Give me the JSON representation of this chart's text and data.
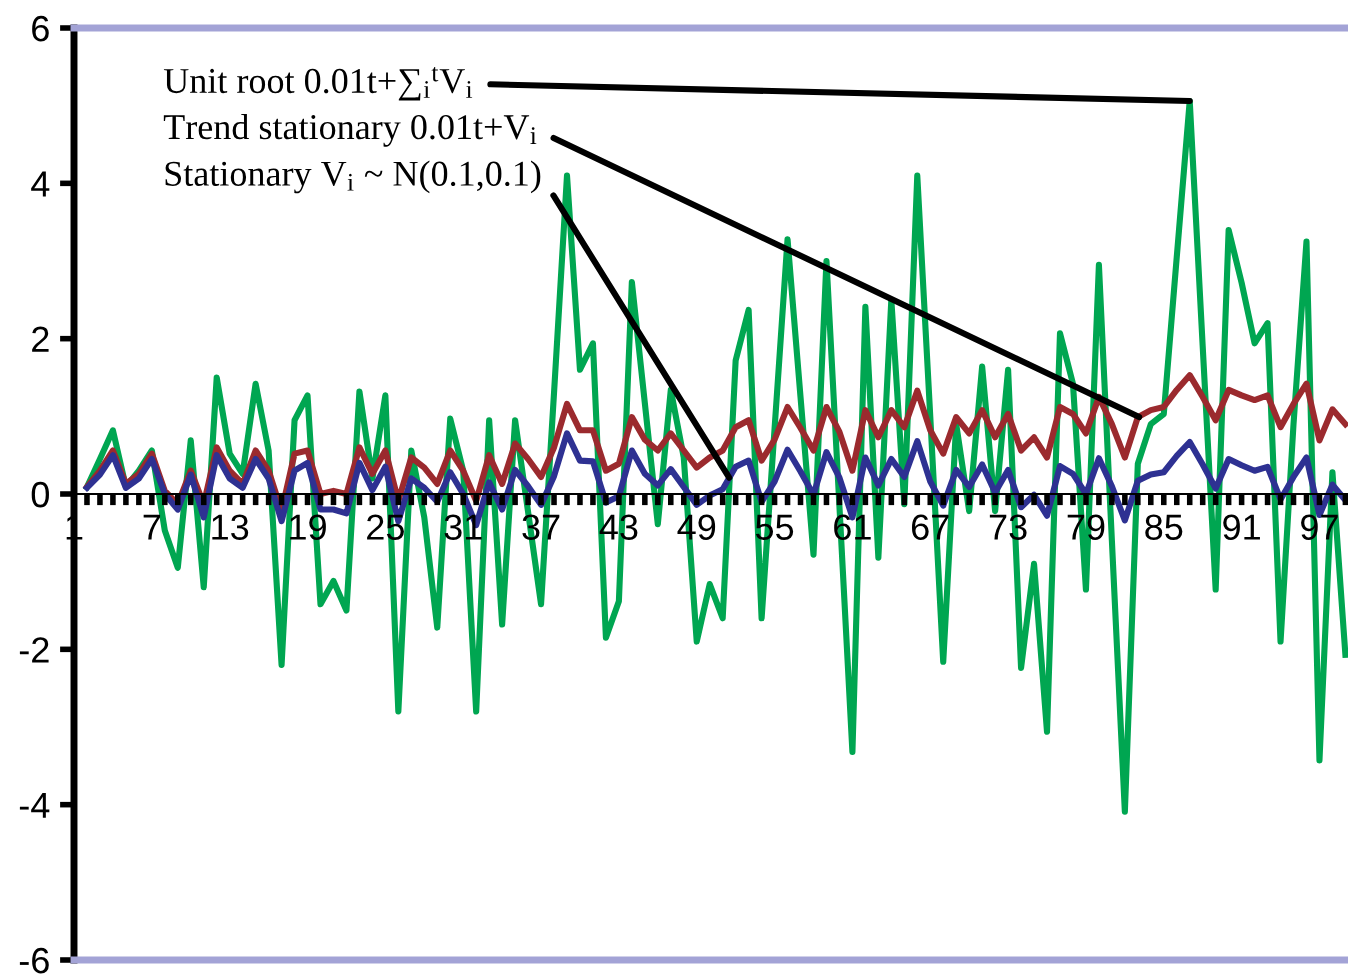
{
  "chart_data": {
    "type": "line",
    "x": [
      2,
      3,
      4,
      5,
      6,
      7,
      8,
      9,
      10,
      11,
      12,
      13,
      14,
      15,
      16,
      17,
      18,
      19,
      20,
      21,
      22,
      23,
      24,
      25,
      26,
      27,
      28,
      29,
      30,
      31,
      32,
      33,
      34,
      35,
      36,
      37,
      38,
      39,
      40,
      41,
      42,
      43,
      44,
      45,
      46,
      47,
      48,
      49,
      50,
      51,
      52,
      53,
      54,
      55,
      56,
      57,
      58,
      59,
      60,
      61,
      62,
      63,
      64,
      65,
      66,
      67,
      68,
      69,
      70,
      71,
      72,
      73,
      74,
      75,
      76,
      77,
      78,
      79,
      80,
      81,
      82,
      83,
      84,
      85,
      86,
      87,
      88,
      89,
      90,
      91,
      92,
      93,
      94,
      95,
      96,
      97,
      98,
      99
    ],
    "series": [
      {
        "color": "#00a651",
        "values": [
          0.09,
          0.45,
          0.82,
          0.09,
          0.3,
          0.56,
          -0.47,
          -0.95,
          0.69,
          -1.2,
          1.5,
          0.52,
          0.26,
          1.42,
          0.56,
          -2.2,
          0.95,
          1.27,
          -1.42,
          -1.12,
          -1.5,
          1.32,
          0.2,
          1.27,
          -2.8,
          0.56,
          -0.3,
          -1.72,
          0.97,
          0.3,
          -2.8,
          0.95,
          -1.68,
          0.95,
          -0.23,
          -1.42,
          1.3,
          4.1,
          1.6,
          1.94,
          -1.85,
          -1.38,
          2.73,
          1.17,
          -0.39,
          1.34,
          0.47,
          -1.9,
          -1.16,
          -1.6,
          1.72,
          2.37,
          -1.6,
          0.84,
          3.28,
          1.25,
          -0.78,
          3.0,
          -0.16,
          -3.32,
          2.41,
          -0.82,
          2.5,
          -0.13,
          4.1,
          1.0,
          -2.16,
          0.9,
          -0.22,
          1.64,
          -0.22,
          1.6,
          -2.24,
          -0.9,
          -3.06,
          2.07,
          1.42,
          -1.23,
          2.95,
          -0.6,
          -4.09,
          0.39,
          0.9,
          1.03,
          3.05,
          5.06,
          1.9,
          -1.23,
          3.4,
          2.72,
          1.94,
          2.2,
          -1.9,
          0.9,
          3.25,
          -3.43,
          0.28,
          -2.07
        ]
      },
      {
        "color": "#9b2a2e",
        "values": [
          0.09,
          0.3,
          0.56,
          0.13,
          0.26,
          0.52,
          0.04,
          -0.13,
          0.3,
          -0.13,
          0.6,
          0.3,
          0.13,
          0.56,
          0.3,
          -0.22,
          0.52,
          0.56,
          0.0,
          0.04,
          0.0,
          0.6,
          0.26,
          0.56,
          -0.09,
          0.47,
          0.34,
          0.13,
          0.56,
          0.3,
          -0.09,
          0.5,
          0.13,
          0.65,
          0.45,
          0.22,
          0.6,
          1.16,
          0.82,
          0.82,
          0.3,
          0.39,
          0.99,
          0.7,
          0.56,
          0.78,
          0.56,
          0.34,
          0.47,
          0.56,
          0.86,
          0.95,
          0.43,
          0.7,
          1.12,
          0.85,
          0.56,
          1.12,
          0.8,
          0.3,
          1.08,
          0.73,
          1.08,
          0.86,
          1.33,
          0.82,
          0.52,
          0.99,
          0.78,
          1.08,
          0.73,
          1.03,
          0.56,
          0.73,
          0.47,
          1.12,
          1.03,
          0.78,
          1.25,
          0.9,
          0.47,
          0.99,
          1.08,
          1.12,
          1.34,
          1.53,
          1.25,
          0.95,
          1.34,
          1.27,
          1.21,
          1.27,
          0.86,
          1.16,
          1.42,
          0.69,
          1.09,
          0.9
        ]
      },
      {
        "color": "#2e3192",
        "values": [
          0.08,
          0.25,
          0.5,
          0.08,
          0.2,
          0.45,
          0.0,
          -0.2,
          0.25,
          -0.3,
          0.5,
          0.2,
          0.08,
          0.45,
          0.2,
          -0.35,
          0.3,
          0.4,
          -0.2,
          -0.2,
          -0.25,
          0.4,
          0.05,
          0.35,
          -0.35,
          0.2,
          0.08,
          -0.1,
          0.28,
          0.0,
          -0.4,
          0.15,
          -0.2,
          0.31,
          0.1,
          -0.14,
          0.23,
          0.78,
          0.43,
          0.42,
          -0.11,
          -0.03,
          0.56,
          0.26,
          0.11,
          0.32,
          0.09,
          -0.14,
          -0.02,
          0.06,
          0.35,
          0.43,
          -0.1,
          0.16,
          0.57,
          0.29,
          -0.01,
          0.54,
          0.21,
          -0.3,
          0.47,
          0.11,
          0.45,
          0.22,
          0.68,
          0.16,
          -0.15,
          0.31,
          0.09,
          0.38,
          0.02,
          0.31,
          -0.17,
          -0.01,
          -0.28,
          0.36,
          0.26,
          0.0,
          0.46,
          0.1,
          -0.34,
          0.17,
          0.25,
          0.28,
          0.49,
          0.67,
          0.38,
          0.07,
          0.45,
          0.37,
          0.3,
          0.35,
          -0.07,
          0.22,
          0.47,
          -0.27,
          0.12,
          -0.08
        ]
      }
    ],
    "xlim": [
      1,
      99.2
    ],
    "xticks": [
      1,
      {
        "value": 2,
        "label": null
      },
      {
        "value": 3,
        "label": null
      },
      {
        "value": 4,
        "label": null
      },
      {
        "value": 5,
        "label": null
      },
      {
        "value": 6,
        "label": null
      },
      7,
      {
        "value": 8,
        "label": null
      },
      {
        "value": 9,
        "label": null
      },
      {
        "value": 10,
        "label": null
      },
      {
        "value": 11,
        "label": null
      },
      {
        "value": 12,
        "label": null
      },
      13,
      {
        "value": 14,
        "label": null
      },
      {
        "value": 15,
        "label": null
      },
      {
        "value": 16,
        "label": null
      },
      {
        "value": 17,
        "label": null
      },
      {
        "value": 18,
        "label": null
      },
      19,
      {
        "value": 20,
        "label": null
      },
      {
        "value": 21,
        "label": null
      },
      {
        "value": 22,
        "label": null
      },
      {
        "value": 23,
        "label": null
      },
      {
        "value": 24,
        "label": null
      },
      25,
      {
        "value": 26,
        "label": null
      },
      {
        "value": 27,
        "label": null
      },
      {
        "value": 28,
        "label": null
      },
      {
        "value": 29,
        "label": null
      },
      {
        "value": 30,
        "label": null
      },
      31,
      {
        "value": 32,
        "label": null
      },
      {
        "value": 33,
        "label": null
      },
      {
        "value": 34,
        "label": null
      },
      {
        "value": 35,
        "label": null
      },
      {
        "value": 36,
        "label": null
      },
      37,
      {
        "value": 38,
        "label": null
      },
      {
        "value": 39,
        "label": null
      },
      {
        "value": 40,
        "label": null
      },
      {
        "value": 41,
        "label": null
      },
      {
        "value": 42,
        "label": null
      },
      43,
      {
        "value": 44,
        "label": null
      },
      {
        "value": 45,
        "label": null
      },
      {
        "value": 46,
        "label": null
      },
      {
        "value": 47,
        "label": null
      },
      {
        "value": 48,
        "label": null
      },
      49,
      {
        "value": 50,
        "label": null
      },
      {
        "value": 51,
        "label": null
      },
      {
        "value": 52,
        "label": null
      },
      {
        "value": 53,
        "label": null
      },
      {
        "value": 54,
        "label": null
      },
      55,
      {
        "value": 56,
        "label": null
      },
      {
        "value": 57,
        "label": null
      },
      {
        "value": 58,
        "label": null
      },
      {
        "value": 59,
        "label": null
      },
      {
        "value": 60,
        "label": null
      },
      61,
      {
        "value": 62,
        "label": null
      },
      {
        "value": 63,
        "label": null
      },
      {
        "value": 64,
        "label": null
      },
      {
        "value": 65,
        "label": null
      },
      {
        "value": 66,
        "label": null
      },
      67,
      {
        "value": 68,
        "label": null
      },
      {
        "value": 69,
        "label": null
      },
      {
        "value": 70,
        "label": null
      },
      {
        "value": 71,
        "label": null
      },
      {
        "value": 72,
        "label": null
      },
      73,
      {
        "value": 74,
        "label": null
      },
      {
        "value": 75,
        "label": null
      },
      {
        "value": 76,
        "label": null
      },
      {
        "value": 77,
        "label": null
      },
      {
        "value": 78,
        "label": null
      },
      79,
      {
        "value": 80,
        "label": null
      },
      {
        "value": 81,
        "label": null
      },
      {
        "value": 82,
        "label": null
      },
      {
        "value": 83,
        "label": null
      },
      {
        "value": 84,
        "label": null
      },
      85,
      {
        "value": 86,
        "label": null
      },
      {
        "value": 87,
        "label": null
      },
      {
        "value": 88,
        "label": null
      },
      {
        "value": 89,
        "label": null
      },
      {
        "value": 90,
        "label": null
      },
      91,
      {
        "value": 92,
        "label": null
      },
      {
        "value": 93,
        "label": null
      },
      {
        "value": 94,
        "label": null
      },
      {
        "value": 95,
        "label": null
      },
      {
        "value": 96,
        "label": null
      },
      97,
      {
        "value": 98,
        "label": null
      },
      {
        "value": 99,
        "label": null
      }
    ],
    "ylim": [
      -6,
      6
    ],
    "yticks": [
      -6,
      -4,
      -2,
      0,
      2,
      4,
      6
    ],
    "grid": false,
    "legend": false,
    "marker": "none",
    "line_style": "solid",
    "annotations": [
      {
        "text": "Unit root 0.01t+∑$_{i}$$^{t}$V$_{i}$",
        "x": 87,
        "y": 5.06
      },
      {
        "text": "Trend stationary 0.01t+V$_{i}$",
        "x": 83.1,
        "y": 0.99
      },
      {
        "text": "Stationary V$_{i}$ ~ N(0.1,0.1)",
        "x": 51.5,
        "y": 0.21
      }
    ]
  }
}
